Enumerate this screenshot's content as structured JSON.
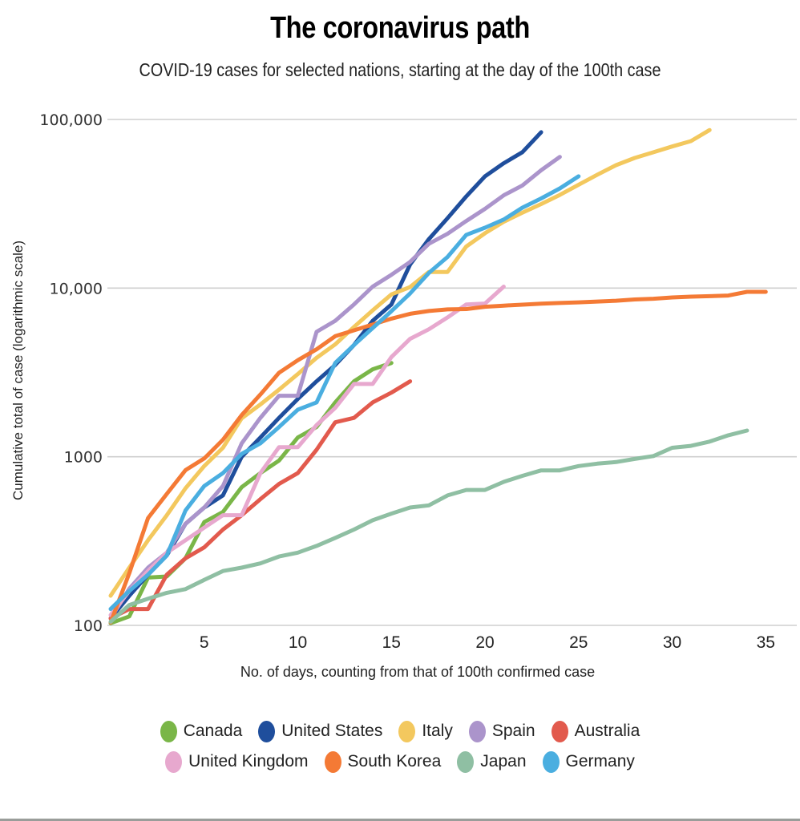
{
  "chart_data": {
    "type": "line",
    "title": "The coronavirus path",
    "subtitle": "COVID-19 cases for selected nations, starting at the day of the 100th case",
    "xlabel": "No. of days, counting from that of 100th confirmed case",
    "ylabel": "Cumulative total of case (logarithmic scale)",
    "yscale": "log",
    "ylim": [
      100,
      100000
    ],
    "xlim": [
      0,
      36
    ],
    "yticks": [
      {
        "value": 100,
        "label": "100"
      },
      {
        "value": 1000,
        "label": "1000"
      },
      {
        "value": 10000,
        "label": "10,000"
      },
      {
        "value": 100000,
        "label": "100,000"
      }
    ],
    "xticks": [
      {
        "value": 5,
        "label": "5"
      },
      {
        "value": 10,
        "label": "10"
      },
      {
        "value": 15,
        "label": "15"
      },
      {
        "value": 20,
        "label": "20"
      },
      {
        "value": 25,
        "label": "25"
      },
      {
        "value": 30,
        "label": "30"
      },
      {
        "value": 35,
        "label": "35"
      }
    ],
    "grid": true,
    "legend_position": "bottom",
    "series": [
      {
        "name": "Canada",
        "color": "#7ab648",
        "x": [
          0,
          1,
          2,
          3,
          4,
          5,
          6,
          7,
          8,
          9,
          10,
          11,
          12,
          13,
          14,
          15
        ],
        "values": [
          103,
          113,
          192,
          195,
          250,
          410,
          470,
          660,
          800,
          950,
          1300,
          1500,
          2100,
          2800,
          3300,
          3600
        ]
      },
      {
        "name": "United States",
        "color": "#1f4e9c",
        "x": [
          0,
          1,
          2,
          3,
          4,
          5,
          6,
          7,
          8,
          9,
          10,
          11,
          12,
          13,
          14,
          15,
          16,
          17,
          18,
          19,
          20,
          21,
          22,
          23
        ],
        "values": [
          110,
          150,
          200,
          260,
          400,
          500,
          590,
          1000,
          1300,
          1700,
          2200,
          2800,
          3500,
          4600,
          6400,
          8000,
          13800,
          19500,
          26000,
          35000,
          46000,
          55000,
          64000,
          84000
        ]
      },
      {
        "name": "Italy",
        "color": "#f3c85e",
        "x": [
          0,
          1,
          2,
          3,
          4,
          5,
          6,
          7,
          8,
          9,
          10,
          11,
          12,
          13,
          14,
          15,
          16,
          17,
          18,
          19,
          20,
          21,
          22,
          23,
          24,
          25,
          26,
          27,
          28,
          29,
          30,
          31,
          32
        ],
        "values": [
          150,
          220,
          320,
          450,
          650,
          880,
          1130,
          1690,
          2040,
          2500,
          3090,
          3860,
          4640,
          5880,
          7380,
          9170,
          10150,
          12460,
          12460,
          17660,
          21160,
          24750,
          27980,
          31500,
          35710,
          41030,
          47020,
          53580,
          59140,
          63930,
          69180,
          74390,
          86500
        ]
      },
      {
        "name": "Spain",
        "color": "#ab94cb",
        "x": [
          0,
          1,
          2,
          3,
          4,
          5,
          6,
          7,
          8,
          9,
          10,
          11,
          12,
          13,
          14,
          15,
          16,
          17,
          18,
          19,
          20,
          21,
          22,
          23,
          24
        ],
        "values": [
          110,
          165,
          220,
          270,
          400,
          500,
          670,
          1200,
          1700,
          2300,
          2300,
          5500,
          6400,
          8000,
          10200,
          12000,
          14300,
          18300,
          21000,
          25000,
          29500,
          35500,
          40600,
          50000,
          60000
        ]
      },
      {
        "name": "Australia",
        "color": "#e25a4d",
        "x": [
          0,
          1,
          2,
          3,
          4,
          5,
          6,
          7,
          8,
          9,
          10,
          11,
          12,
          13,
          14,
          15,
          16
        ],
        "values": [
          110,
          125,
          125,
          200,
          250,
          290,
          370,
          450,
          560,
          690,
          800,
          1100,
          1600,
          1700,
          2100,
          2400,
          2800
        ]
      },
      {
        "name": "United Kingdom",
        "color": "#e7a8ce",
        "x": [
          0,
          1,
          2,
          3,
          4,
          5,
          6,
          7,
          8,
          9,
          10,
          11,
          12,
          13,
          14,
          15,
          16,
          17,
          18,
          19,
          20,
          21
        ],
        "values": [
          115,
          160,
          210,
          270,
          320,
          380,
          450,
          450,
          800,
          1140,
          1140,
          1540,
          1950,
          2700,
          2700,
          3900,
          5000,
          5700,
          6700,
          8000,
          8100,
          10200
        ]
      },
      {
        "name": "South Korea",
        "color": "#f47a35",
        "x": [
          0,
          1,
          2,
          3,
          4,
          5,
          6,
          7,
          8,
          9,
          10,
          11,
          12,
          13,
          14,
          15,
          16,
          17,
          18,
          19,
          20,
          21,
          22,
          23,
          24,
          25,
          26,
          27,
          28,
          29,
          30,
          31,
          32,
          33,
          34,
          35
        ],
        "values": [
          104,
          204,
          433,
          602,
          833,
          977,
          1261,
          1766,
          2337,
          3150,
          3736,
          4335,
          5186,
          5621,
          6088,
          6593,
          7041,
          7313,
          7478,
          7513,
          7755,
          7869,
          7979,
          8086,
          8162,
          8236,
          8320,
          8413,
          8565,
          8652,
          8799,
          8897,
          8961,
          9037,
          9500,
          9500
        ]
      },
      {
        "name": "Japan",
        "color": "#8fbfa3",
        "x": [
          0,
          1,
          2,
          3,
          4,
          5,
          6,
          7,
          8,
          9,
          10,
          11,
          12,
          13,
          14,
          15,
          16,
          17,
          18,
          19,
          20,
          21,
          22,
          23,
          24,
          25,
          26,
          27,
          28,
          29,
          30,
          31,
          32,
          33,
          34
        ],
        "values": [
          105,
          132,
          144,
          156,
          164,
          186,
          210,
          220,
          233,
          256,
          270,
          296,
          330,
          370,
          420,
          460,
          500,
          515,
          590,
          635,
          635,
          710,
          770,
          830,
          830,
          880,
          910,
          930,
          970,
          1010,
          1130,
          1160,
          1230,
          1340,
          1430
        ]
      },
      {
        "name": "Germany",
        "color": "#4aaee0",
        "x": [
          0,
          1,
          2,
          3,
          4,
          5,
          6,
          7,
          8,
          9,
          10,
          11,
          12,
          13,
          14,
          15,
          16,
          17,
          18,
          19,
          20,
          21,
          22,
          23,
          24,
          25
        ],
        "values": [
          125,
          160,
          200,
          260,
          480,
          670,
          800,
          1040,
          1200,
          1500,
          1900,
          2100,
          3600,
          4600,
          5800,
          7300,
          9300,
          12300,
          15300,
          20700,
          22800,
          25500,
          30000,
          34000,
          39000,
          46000
        ]
      }
    ]
  }
}
